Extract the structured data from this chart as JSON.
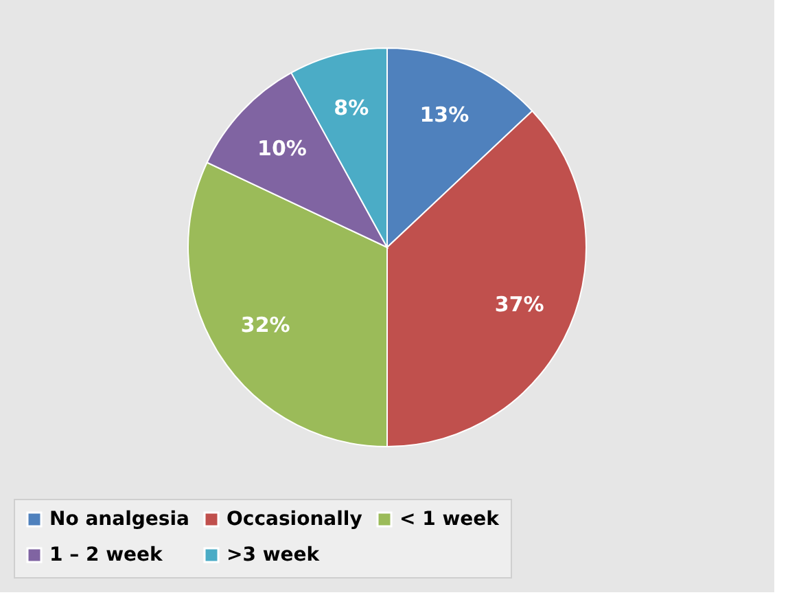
{
  "chart_data": {
    "type": "pie",
    "categories": [
      "No analgesia",
      "Occasionally",
      "< 1 week",
      "1 – 2 week",
      ">3 week"
    ],
    "values": [
      13,
      37,
      32,
      10,
      8
    ],
    "colors": [
      "#4f81bd",
      "#c0504d",
      "#9bbb59",
      "#8064a2",
      "#4bacc6"
    ],
    "value_labels": [
      "13%",
      "37%",
      "32%",
      "10%",
      "8%"
    ],
    "legend": "bottom"
  }
}
